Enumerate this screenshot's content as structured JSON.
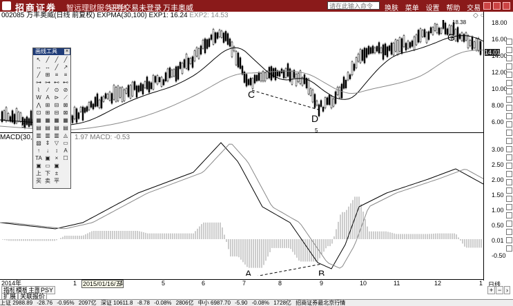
{
  "titlebar": {
    "brand": "招商证券",
    "tagline": "智远理财服务平台",
    "account_status": "证券交易未登录",
    "stock_name": "万丰奥威",
    "command_placeholder": "请在此输入命令",
    "menu": [
      "换肤",
      "菜单",
      "设置",
      "帮助",
      "交易"
    ]
  },
  "header": {
    "code": "002085",
    "name": "万丰奥威(日线 前复权)",
    "indicator": "EXPMA(30,100)",
    "exp1": "EXP1: 16.24",
    "exp2": "EXP2: 14.53"
  },
  "price_axis": [
    "18.00",
    "16.00",
    "14.00",
    "12.00",
    "10.00",
    "8.00",
    "6.00"
  ],
  "current_price": "14.01",
  "high_label": "18.38",
  "left_marker": "5.",
  "macd_header": {
    "label": "MACD(30,100",
    "values": "1.97  MACD: -0.53"
  },
  "macd_axis": [
    "3.00",
    "2.50",
    "2.00",
    "1.50",
    "1.00",
    "0.50",
    "0.01",
    "-0.50"
  ],
  "annotations": {
    "c": "C",
    "d": "D",
    "g": "G",
    "a": "A",
    "b": "B",
    "d_mark": "5"
  },
  "time_axis": {
    "year": "2014年",
    "labels": [
      "1",
      "2015/01/16/五",
      "4",
      "5",
      "6",
      "7",
      "8",
      "9",
      "10",
      "11",
      "12",
      "1"
    ],
    "unit": "日线"
  },
  "tabs": {
    "row1": [
      "指标",
      "模板",
      "主图",
      "PSY"
    ],
    "row2": [
      "扩展",
      "关联报价"
    ]
  },
  "status": [
    "上证 2988.89",
    "-28.76",
    "-0.95%",
    "2097亿",
    "深证 10611.8",
    "-8.78",
    "-0.08%",
    "2806亿",
    "中小 6987.70",
    "-5.90",
    "-0.08%",
    "1728亿",
    "招商证券最北京行情"
  ],
  "toolbox": {
    "title": "画线工具",
    "close": "×",
    "tools": [
      "↖",
      "╱",
      "╱",
      "╱",
      "↔",
      "↔",
      "╱",
      "↗",
      "╱",
      "⊞",
      "≡",
      "≡",
      "⊶",
      "⊶",
      "⊷",
      "⊷",
      "⌇",
      "⁄",
      "⊙",
      "⊘",
      "W",
      "A",
      "⊳",
      "⟋",
      "⋀",
      "⊞",
      "⊟",
      "⊠",
      "⊡",
      "⊞",
      "⊟",
      "⊠",
      "▦",
      "▦",
      "▦",
      "▦",
      "▤",
      "▤",
      "▤",
      "▤",
      "▥",
      "▥",
      "▥",
      "◬",
      "▧",
      "⇕",
      "▽",
      "▭",
      "↑",
      "↓",
      "↕",
      "A",
      "TA",
      "▣",
      "×",
      "☐",
      "▣",
      "▭",
      "▣",
      "",
      "上",
      "下",
      "±",
      "",
      "买",
      "卖",
      "平",
      ""
    ]
  }
}
